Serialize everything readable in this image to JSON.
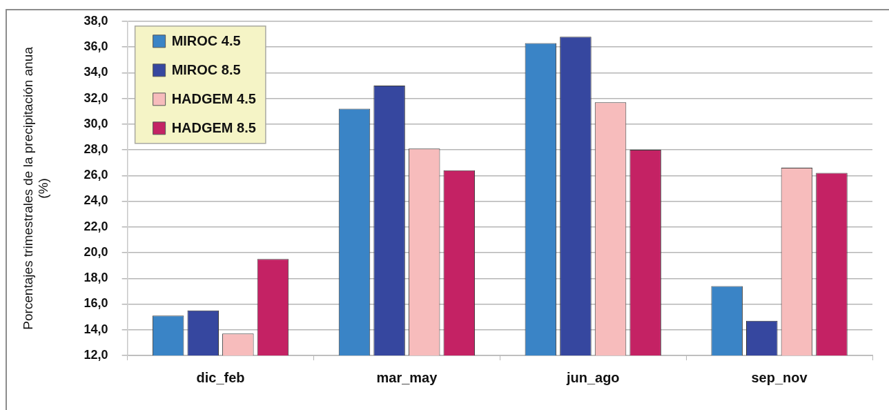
{
  "chart_data": {
    "type": "bar",
    "ylabel": "Porcentajes trimestrales de la precipitación anua (%)",
    "categories": [
      "dic_feb",
      "mar_may",
      "jun_ago",
      "sep_nov"
    ],
    "series": [
      {
        "name": "MIROC 4.5",
        "color": "#3a84c6",
        "values": [
          15.1,
          31.2,
          36.3,
          17.4
        ]
      },
      {
        "name": "MIROC 8.5",
        "color": "#36479f",
        "values": [
          15.5,
          33.0,
          36.8,
          14.7
        ]
      },
      {
        "name": "HADGEM 4.5",
        "color": "#f7bcbc",
        "values": [
          13.7,
          28.1,
          31.7,
          26.6
        ]
      },
      {
        "name": "HADGEM 8.5",
        "color": "#c42264",
        "values": [
          19.5,
          26.4,
          28.0,
          26.2
        ]
      }
    ],
    "ylim": [
      12,
      38
    ],
    "yticks": [
      {
        "value": 12,
        "label": "12,0"
      },
      {
        "value": 14,
        "label": "14,0"
      },
      {
        "value": 16,
        "label": "16,0"
      },
      {
        "value": 18,
        "label": "18,0"
      },
      {
        "value": 20,
        "label": "20,0"
      },
      {
        "value": 22,
        "label": "22,0"
      },
      {
        "value": 24,
        "label": "24,0"
      },
      {
        "value": 26,
        "label": "26,0"
      },
      {
        "value": 28,
        "label": "28,0"
      },
      {
        "value": 30,
        "label": "30,0"
      },
      {
        "value": 32,
        "label": "32,0"
      },
      {
        "value": 34,
        "label": "34,0"
      },
      {
        "value": 36,
        "label": "36,0"
      },
      {
        "value": 38,
        "label": "38,0"
      }
    ],
    "grid": "y",
    "legend": "top left"
  }
}
